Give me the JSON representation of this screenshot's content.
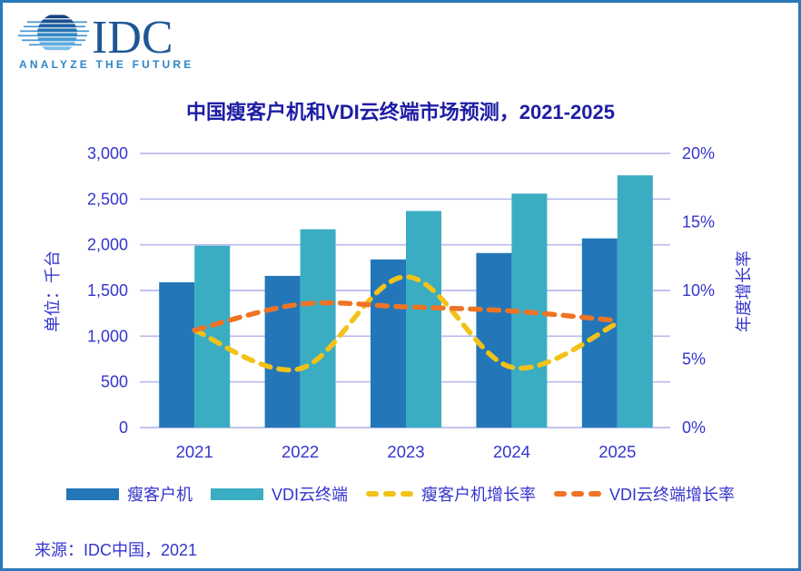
{
  "header": {
    "logo_text": "IDC",
    "tagline": "ANALYZE THE FUTURE"
  },
  "title": "中国瘦客户机和VDI云终端市场预测，2021-2025",
  "source": "来源：IDC中国，2021",
  "colors": {
    "frame_border": "#2A79B8",
    "title_text": "#1D1DA5",
    "axis_text": "#3535CD",
    "gridline": "#B9BAEC",
    "thin_client_bar": "#2377B9",
    "vdi_bar": "#3AADC2",
    "thin_client_growth_line": "#F2C218",
    "vdi_growth_line": "#EE7425",
    "logo_navy": "#1E5795",
    "logo_tagline_blue": "#2E86C6"
  },
  "chart_data": {
    "type": "bar",
    "subtype": "grouped bars with smoothed dashed growth-rate lines on secondary axis",
    "title": "中国瘦客户机和VDI云终端市场预测，2021-2025",
    "categories": [
      "2021",
      "2022",
      "2023",
      "2024",
      "2025"
    ],
    "series": [
      {
        "name": "瘦客户机",
        "type": "bar",
        "axis": "left",
        "color": "#2377B9",
        "values": [
          1590,
          1660,
          1840,
          1910,
          2070
        ]
      },
      {
        "name": "VDI云终端",
        "type": "bar",
        "axis": "left",
        "color": "#3AADC2",
        "values": [
          1990,
          2170,
          2370,
          2560,
          2760
        ]
      },
      {
        "name": "瘦客户机增长率",
        "type": "line",
        "axis": "right",
        "color": "#F2C218",
        "values": [
          7.1,
          4.3,
          11.0,
          4.4,
          7.6
        ]
      },
      {
        "name": "VDI云终端增长率",
        "type": "line",
        "axis": "right",
        "color": "#EE7425",
        "values": [
          7.1,
          9.0,
          8.8,
          8.5,
          7.8
        ]
      }
    ],
    "left_axis": {
      "title": "单位：千台",
      "min": 0,
      "max": 3000,
      "tick_step": 500,
      "tick_labels": [
        "0",
        "500",
        "1,000",
        "1,500",
        "2,000",
        "2,500",
        "3,000"
      ]
    },
    "right_axis": {
      "title": "年度增长率",
      "min": 0,
      "max": 20,
      "tick_step": 5,
      "tick_labels": [
        "0%",
        "5%",
        "10%",
        "15%",
        "20%"
      ],
      "unit": "%"
    },
    "grid": true,
    "legend_position": "bottom"
  }
}
